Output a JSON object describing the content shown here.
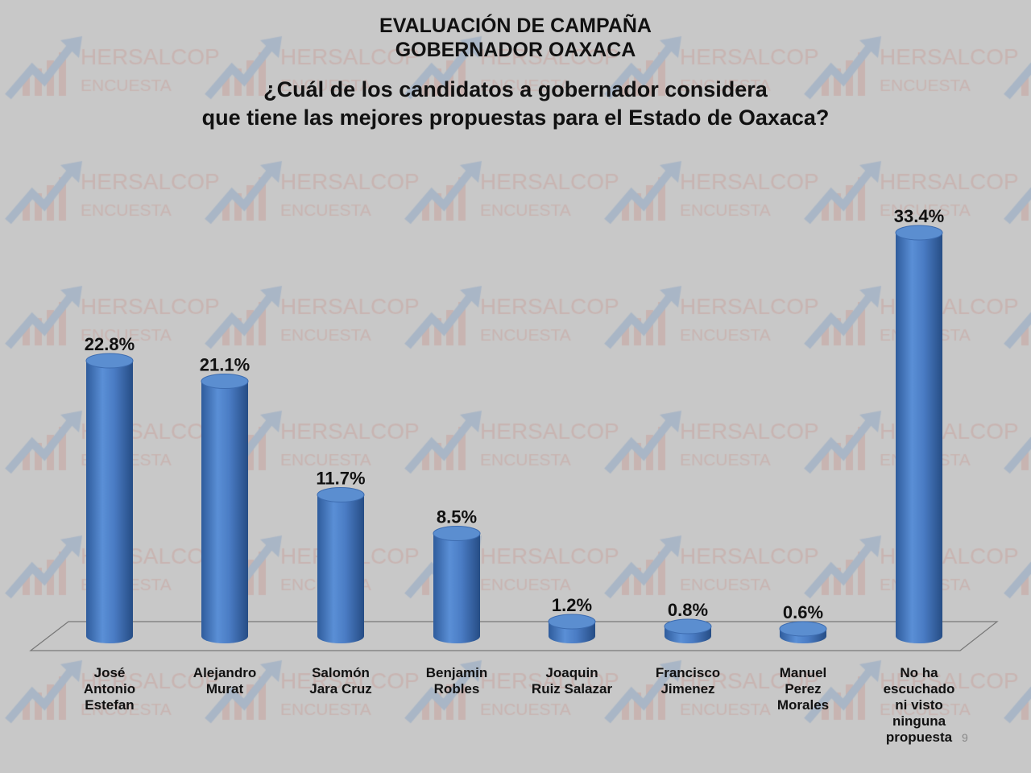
{
  "watermark": {
    "brand": "HERSALCOP",
    "sub": "ENCUESTA"
  },
  "titles": {
    "line1": "EVALUACIÓN DE CAMPAÑA",
    "line2": "GOBERNADOR OAXACA",
    "line3": "¿Cuál de los candidatos a gobernador considera",
    "line4": "que tiene las mejores propuestas para el Estado de Oaxaca?"
  },
  "page_number": "9",
  "chart_data": {
    "type": "bar",
    "style": "3d-cylinder",
    "title": "¿Cuál de los candidatos a gobernador considera que tiene las mejores propuestas para el Estado de Oaxaca?",
    "categories": [
      "José\nAntonio\nEstefan",
      "Alejandro\nMurat",
      "Salomón\nJara Cruz",
      "Benjamin\nRobles",
      "Joaquin\nRuiz Salazar",
      "Francisco\nJimenez",
      "Manuel\nPerez\nMorales",
      "No ha\nescuchado\nni visto\nninguna\npropuesta"
    ],
    "values": [
      22.8,
      21.1,
      11.7,
      8.5,
      1.2,
      0.8,
      0.6,
      33.4
    ],
    "data_labels": [
      "22.8%",
      "21.1%",
      "11.7%",
      "8.5%",
      "1.2%",
      "0.8%",
      "0.6%",
      "33.4%"
    ],
    "unit": "%",
    "bar_color": "#4a7cc4",
    "grid": false,
    "legend": "none"
  }
}
